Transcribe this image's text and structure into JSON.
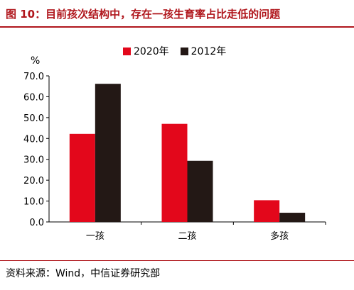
{
  "title": "图 10：目前孩次结构中，存在一孩生育率占比走低的问题",
  "source": "资料来源：Wind，中信证券研究部",
  "colors": {
    "accent": "#b0161c",
    "series_2020": "#e3071b",
    "series_2012": "#231815"
  },
  "chart_data": {
    "type": "bar",
    "ylabel": "%",
    "categories": [
      "一孩",
      "二孩",
      "多孩"
    ],
    "series": [
      {
        "name": "2020年",
        "values": [
          42.2,
          47.0,
          10.4
        ]
      },
      {
        "name": "2012年",
        "values": [
          66.2,
          29.3,
          4.4
        ]
      }
    ],
    "ylim": [
      0,
      70
    ],
    "yticks": [
      "0.0",
      "10.0",
      "20.0",
      "30.0",
      "40.0",
      "50.0",
      "60.0",
      "70.0"
    ],
    "legend_position": "top-center",
    "grid": false
  }
}
